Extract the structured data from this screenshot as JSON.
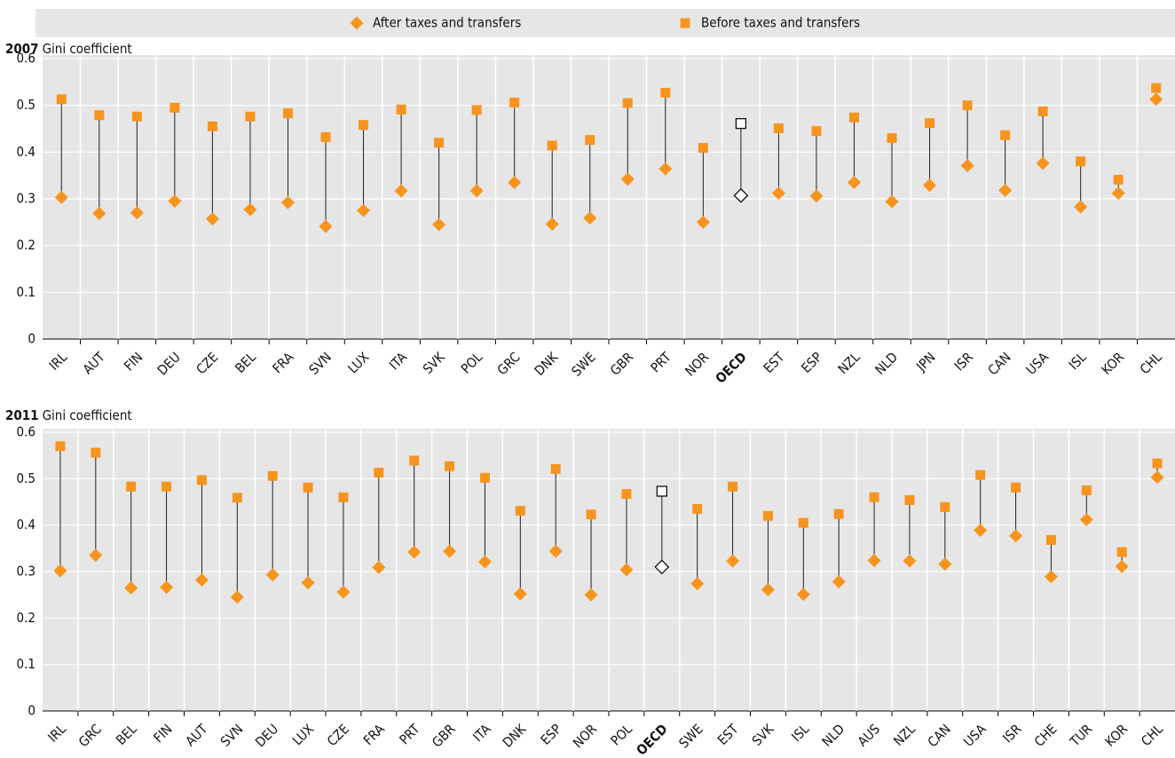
{
  "chart_data": [
    {
      "type": "dumbbell",
      "title": "2007",
      "y_label": "Gini coefficient",
      "categories": [
        "IRL",
        "AUT",
        "FIN",
        "DEU",
        "CZE",
        "BEL",
        "FRA",
        "SVN",
        "LUX",
        "ITA",
        "SVK",
        "POL",
        "GRC",
        "DNK",
        "SWE",
        "GBR",
        "PRT",
        "NOR",
        "OECD",
        "EST",
        "ESP",
        "NZL",
        "NLD",
        "JPN",
        "ISR",
        "CAN",
        "USA",
        "ISL",
        "KOR",
        "CHL"
      ],
      "highlight_category": "OECD",
      "series": [
        {
          "name": "After taxes and transfers",
          "marker": "diamond",
          "color": "#f7941d",
          "values": [
            0.303,
            0.269,
            0.27,
            0.295,
            0.257,
            0.277,
            0.292,
            0.241,
            0.275,
            0.317,
            0.245,
            0.317,
            0.335,
            0.246,
            0.259,
            0.342,
            0.364,
            0.25,
            0.307,
            0.312,
            0.306,
            0.335,
            0.294,
            0.329,
            0.371,
            0.318,
            0.376,
            0.283,
            0.312,
            0.513
          ]
        },
        {
          "name": "Before taxes and transfers",
          "marker": "square",
          "color": "#f7941d",
          "values": [
            0.513,
            0.479,
            0.476,
            0.495,
            0.455,
            0.476,
            0.483,
            0.432,
            0.458,
            0.491,
            0.42,
            0.49,
            0.506,
            0.414,
            0.426,
            0.505,
            0.527,
            0.409,
            0.461,
            0.451,
            0.445,
            0.474,
            0.43,
            0.462,
            0.5,
            0.436,
            0.487,
            0.38,
            0.341,
            0.537
          ]
        }
      ],
      "ylim": [
        0,
        0.6
      ],
      "yticks": [
        0,
        0.1,
        0.2,
        0.3,
        0.4,
        0.5,
        0.6
      ],
      "grid": true
    },
    {
      "type": "dumbbell",
      "title": "2011",
      "y_label": "Gini coefficient",
      "categories": [
        "IRL",
        "GRC",
        "BEL",
        "FIN",
        "AUT",
        "SVN",
        "DEU",
        "LUX",
        "CZE",
        "FRA",
        "PRT",
        "GBR",
        "ITA",
        "DNK",
        "ESP",
        "NOR",
        "POL",
        "OECD",
        "SWE",
        "EST",
        "SVK",
        "ISL",
        "NLD",
        "AUS",
        "NZL",
        "CAN",
        "USA",
        "ISR",
        "CHE",
        "TUR",
        "KOR",
        "CHL"
      ],
      "highlight_category": "OECD",
      "series": [
        {
          "name": "After taxes and transfers",
          "marker": "diamond",
          "color": "#f7941d",
          "values": [
            0.302,
            0.335,
            0.265,
            0.266,
            0.282,
            0.245,
            0.293,
            0.276,
            0.256,
            0.309,
            0.342,
            0.344,
            0.321,
            0.252,
            0.344,
            0.25,
            0.304,
            0.31,
            0.274,
            0.323,
            0.261,
            0.251,
            0.278,
            0.324,
            0.323,
            0.316,
            0.389,
            0.377,
            0.289,
            0.412,
            0.311,
            0.503
          ]
        },
        {
          "name": "Before taxes and transfers",
          "marker": "square",
          "color": "#f7941d",
          "values": [
            0.57,
            0.556,
            0.483,
            0.483,
            0.497,
            0.459,
            0.506,
            0.481,
            0.46,
            0.513,
            0.539,
            0.527,
            0.502,
            0.431,
            0.521,
            0.423,
            0.467,
            0.473,
            0.435,
            0.483,
            0.42,
            0.405,
            0.424,
            0.46,
            0.454,
            0.439,
            0.508,
            0.481,
            0.368,
            0.475,
            0.342,
            0.533
          ]
        }
      ],
      "ylim": [
        0,
        0.6
      ],
      "yticks": [
        0,
        0.1,
        0.2,
        0.3,
        0.4,
        0.5,
        0.6
      ],
      "grid": true
    }
  ]
}
